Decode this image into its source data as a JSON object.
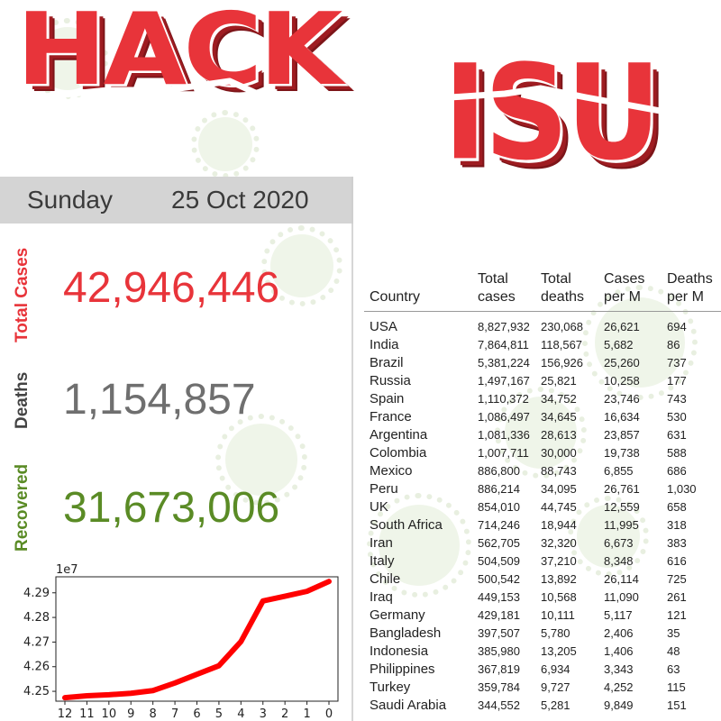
{
  "logo": {
    "line1": "HACK",
    "line2": "ISU"
  },
  "date": {
    "day": "Sunday",
    "full": "25 Oct 2020"
  },
  "stats": {
    "total_cases": {
      "label": "Total Cases",
      "value": "42,946,446",
      "color": "#e8343a"
    },
    "deaths": {
      "label": "Deaths",
      "value": "1,154,857",
      "color": "#6f6f6f"
    },
    "recovered": {
      "label": "Recovered",
      "value": "31,673,006",
      "color": "#5a8b25"
    }
  },
  "chart_data": {
    "type": "line",
    "scale_label": "1e7",
    "x": [
      12,
      11,
      10,
      9,
      8,
      7,
      6,
      5,
      4,
      3,
      2,
      1,
      0
    ],
    "x_tick_labels": [
      "12",
      "11",
      "10",
      "9",
      "8",
      "7",
      "6",
      "5",
      "4",
      "3",
      "2",
      "1",
      "0"
    ],
    "values": [
      4.2474,
      4.2482,
      4.2486,
      4.2492,
      4.2503,
      4.2534,
      4.2569,
      4.2604,
      4.2702,
      4.2867,
      4.2886,
      4.2906,
      4.2946
    ],
    "y_ticks": [
      4.25,
      4.26,
      4.27,
      4.28,
      4.29
    ],
    "y_tick_labels": [
      "4.25",
      "4.26",
      "4.27",
      "4.28",
      "4.29"
    ],
    "ylim": [
      4.246,
      4.2965
    ],
    "line_color": "#ff0000"
  },
  "table": {
    "headers": [
      [
        "Country",
        ""
      ],
      [
        "Total",
        "cases"
      ],
      [
        "Total",
        "deaths"
      ],
      [
        "Cases",
        "per M"
      ],
      [
        "Deaths",
        "per M"
      ]
    ],
    "rows": [
      [
        "USA",
        "8,827,932",
        "230,068",
        "26,621",
        "694"
      ],
      [
        "India",
        "7,864,811",
        "118,567",
        "5,682",
        "86"
      ],
      [
        "Brazil",
        "5,381,224",
        "156,926",
        "25,260",
        "737"
      ],
      [
        "Russia",
        "1,497,167",
        "25,821",
        "10,258",
        "177"
      ],
      [
        "Spain",
        "1,110,372",
        "34,752",
        "23,746",
        "743"
      ],
      [
        "France",
        "1,086,497",
        "34,645",
        "16,634",
        "530"
      ],
      [
        "Argentina",
        "1,081,336",
        "28,613",
        "23,857",
        "631"
      ],
      [
        "Colombia",
        "1,007,711",
        "30,000",
        "19,738",
        "588"
      ],
      [
        "Mexico",
        "886,800",
        "88,743",
        "6,855",
        "686"
      ],
      [
        "Peru",
        "886,214",
        "34,095",
        "26,761",
        "1,030"
      ],
      [
        "UK",
        "854,010",
        "44,745",
        "12,559",
        "658"
      ],
      [
        "South Africa",
        "714,246",
        "18,944",
        "11,995",
        "318"
      ],
      [
        "Iran",
        "562,705",
        "32,320",
        "6,673",
        "383"
      ],
      [
        "Italy",
        "504,509",
        "37,210",
        "8,348",
        "616"
      ],
      [
        "Chile",
        "500,542",
        "13,892",
        "26,114",
        "725"
      ],
      [
        "Iraq",
        "449,153",
        "10,568",
        "11,090",
        "261"
      ],
      [
        "Germany",
        "429,181",
        "10,111",
        "5,117",
        "121"
      ],
      [
        "Bangladesh",
        "397,507",
        "5,780",
        "2,406",
        "35"
      ],
      [
        "Indonesia",
        "385,980",
        "13,205",
        "1,406",
        "48"
      ],
      [
        "Philippines",
        "367,819",
        "6,934",
        "3,343",
        "63"
      ],
      [
        "Turkey",
        "359,784",
        "9,727",
        "4,252",
        "115"
      ],
      [
        "Saudi Arabia",
        "344,552",
        "5,281",
        "9,849",
        "151"
      ]
    ]
  },
  "icons": {
    "background": "virus-icon"
  }
}
